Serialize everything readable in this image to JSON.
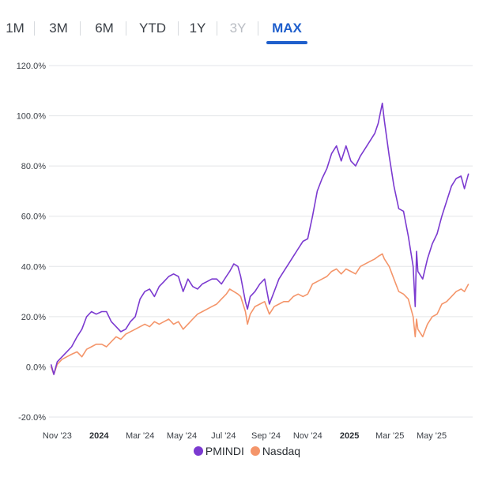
{
  "tabs": [
    {
      "label": "1M",
      "state": "normal"
    },
    {
      "label": "3M",
      "state": "normal"
    },
    {
      "label": "6M",
      "state": "normal"
    },
    {
      "label": "YTD",
      "state": "normal"
    },
    {
      "label": "1Y",
      "state": "normal"
    },
    {
      "label": "3Y",
      "state": "disabled"
    },
    {
      "label": "MAX",
      "state": "active"
    }
  ],
  "colors": {
    "pmindi": "#7b3ad0",
    "nasdaq": "#f4956a",
    "grid": "#e3e5e8",
    "active_tab": "#1f5fcc"
  },
  "legend": [
    {
      "label": "PMINDI",
      "color": "#7b3ad0"
    },
    {
      "label": "Nasdaq",
      "color": "#f4956a"
    }
  ],
  "chart_data": {
    "type": "line",
    "y_tick_labels": [
      "120.0%",
      "100.0%",
      "80.0%",
      "60.0%",
      "40.0%",
      "20.0%",
      "0.0%",
      "-20.0%"
    ],
    "y_ticks": [
      120,
      100,
      80,
      60,
      40,
      20,
      0,
      -20
    ],
    "ylim": [
      -20,
      120
    ],
    "x_tick_labels": [
      {
        "label": "Nov '23",
        "date": "2023-11-01",
        "bold": false
      },
      {
        "label": "2024",
        "date": "2024-01-01",
        "bold": true
      },
      {
        "label": "Mar '24",
        "date": "2024-03-01",
        "bold": false
      },
      {
        "label": "May '24",
        "date": "2024-05-01",
        "bold": false
      },
      {
        "label": "Jul '24",
        "date": "2024-07-01",
        "bold": false
      },
      {
        "label": "Sep '24",
        "date": "2024-09-01",
        "bold": false
      },
      {
        "label": "Nov '24",
        "date": "2024-11-01",
        "bold": false
      },
      {
        "label": "2025",
        "date": "2025-01-01",
        "bold": true
      },
      {
        "label": "Mar '25",
        "date": "2025-03-01",
        "bold": false
      },
      {
        "label": "May '25",
        "date": "2025-05-01",
        "bold": false
      }
    ],
    "xlim": [
      "2023-10-20",
      "2025-06-30"
    ],
    "grid": "horizontal",
    "legend_position": "bottom",
    "series": [
      {
        "name": "PMINDI",
        "points": [
          [
            "2023-10-23",
            1
          ],
          [
            "2023-10-27",
            -3
          ],
          [
            "2023-11-01",
            2
          ],
          [
            "2023-11-08",
            4
          ],
          [
            "2023-11-15",
            6
          ],
          [
            "2023-11-22",
            8
          ],
          [
            "2023-11-30",
            12
          ],
          [
            "2023-12-07",
            15
          ],
          [
            "2023-12-14",
            20
          ],
          [
            "2023-12-21",
            22
          ],
          [
            "2023-12-28",
            21
          ],
          [
            "2024-01-05",
            22
          ],
          [
            "2024-01-12",
            22
          ],
          [
            "2024-01-19",
            18
          ],
          [
            "2024-01-26",
            16
          ],
          [
            "2024-02-02",
            14
          ],
          [
            "2024-02-09",
            15
          ],
          [
            "2024-02-16",
            18
          ],
          [
            "2024-02-23",
            20
          ],
          [
            "2024-03-01",
            27
          ],
          [
            "2024-03-08",
            30
          ],
          [
            "2024-03-15",
            31
          ],
          [
            "2024-03-22",
            28
          ],
          [
            "2024-03-29",
            32
          ],
          [
            "2024-04-05",
            34
          ],
          [
            "2024-04-12",
            36
          ],
          [
            "2024-04-19",
            37
          ],
          [
            "2024-04-26",
            36
          ],
          [
            "2024-05-03",
            30
          ],
          [
            "2024-05-10",
            35
          ],
          [
            "2024-05-17",
            32
          ],
          [
            "2024-05-24",
            31
          ],
          [
            "2024-05-31",
            33
          ],
          [
            "2024-06-07",
            34
          ],
          [
            "2024-06-14",
            35
          ],
          [
            "2024-06-21",
            35
          ],
          [
            "2024-06-28",
            33
          ],
          [
            "2024-07-05",
            36
          ],
          [
            "2024-07-10",
            38
          ],
          [
            "2024-07-16",
            41
          ],
          [
            "2024-07-22",
            40
          ],
          [
            "2024-07-26",
            36
          ],
          [
            "2024-08-02",
            26
          ],
          [
            "2024-08-05",
            23
          ],
          [
            "2024-08-09",
            28
          ],
          [
            "2024-08-16",
            30
          ],
          [
            "2024-08-23",
            33
          ],
          [
            "2024-08-30",
            35
          ],
          [
            "2024-09-06",
            25
          ],
          [
            "2024-09-13",
            30
          ],
          [
            "2024-09-20",
            35
          ],
          [
            "2024-09-27",
            38
          ],
          [
            "2024-10-04",
            41
          ],
          [
            "2024-10-11",
            44
          ],
          [
            "2024-10-18",
            47
          ],
          [
            "2024-10-25",
            50
          ],
          [
            "2024-11-01",
            51
          ],
          [
            "2024-11-08",
            60
          ],
          [
            "2024-11-15",
            70
          ],
          [
            "2024-11-22",
            75
          ],
          [
            "2024-11-29",
            79
          ],
          [
            "2024-12-06",
            85
          ],
          [
            "2024-12-13",
            88
          ],
          [
            "2024-12-20",
            82
          ],
          [
            "2024-12-27",
            88
          ],
          [
            "2025-01-03",
            82
          ],
          [
            "2025-01-10",
            80
          ],
          [
            "2025-01-17",
            84
          ],
          [
            "2025-01-24",
            87
          ],
          [
            "2025-01-31",
            90
          ],
          [
            "2025-02-07",
            93
          ],
          [
            "2025-02-12",
            97
          ],
          [
            "2025-02-18",
            105
          ],
          [
            "2025-02-21",
            98
          ],
          [
            "2025-02-28",
            84
          ],
          [
            "2025-03-07",
            72
          ],
          [
            "2025-03-14",
            63
          ],
          [
            "2025-03-21",
            62
          ],
          [
            "2025-03-28",
            52
          ],
          [
            "2025-04-04",
            40
          ],
          [
            "2025-04-07",
            24
          ],
          [
            "2025-04-09",
            46
          ],
          [
            "2025-04-11",
            38
          ],
          [
            "2025-04-18",
            35
          ],
          [
            "2025-04-25",
            43
          ],
          [
            "2025-05-02",
            49
          ],
          [
            "2025-05-09",
            53
          ],
          [
            "2025-05-16",
            60
          ],
          [
            "2025-05-23",
            66
          ],
          [
            "2025-05-30",
            72
          ],
          [
            "2025-06-06",
            75
          ],
          [
            "2025-06-13",
            76
          ],
          [
            "2025-06-18",
            71
          ],
          [
            "2025-06-24",
            77
          ]
        ]
      },
      {
        "name": "Nasdaq",
        "points": [
          [
            "2023-10-23",
            0
          ],
          [
            "2023-10-27",
            -3
          ],
          [
            "2023-11-01",
            1
          ],
          [
            "2023-11-08",
            3
          ],
          [
            "2023-11-15",
            4
          ],
          [
            "2023-11-22",
            5
          ],
          [
            "2023-11-30",
            6
          ],
          [
            "2023-12-07",
            4
          ],
          [
            "2023-12-14",
            7
          ],
          [
            "2023-12-21",
            8
          ],
          [
            "2023-12-28",
            9
          ],
          [
            "2024-01-05",
            9
          ],
          [
            "2024-01-12",
            8
          ],
          [
            "2024-01-19",
            10
          ],
          [
            "2024-01-26",
            12
          ],
          [
            "2024-02-02",
            11
          ],
          [
            "2024-02-09",
            13
          ],
          [
            "2024-02-16",
            14
          ],
          [
            "2024-02-23",
            15
          ],
          [
            "2024-03-01",
            16
          ],
          [
            "2024-03-08",
            17
          ],
          [
            "2024-03-15",
            16
          ],
          [
            "2024-03-22",
            18
          ],
          [
            "2024-03-29",
            17
          ],
          [
            "2024-04-05",
            18
          ],
          [
            "2024-04-12",
            19
          ],
          [
            "2024-04-19",
            17
          ],
          [
            "2024-04-26",
            18
          ],
          [
            "2024-05-03",
            15
          ],
          [
            "2024-05-10",
            17
          ],
          [
            "2024-05-17",
            19
          ],
          [
            "2024-05-24",
            21
          ],
          [
            "2024-05-31",
            22
          ],
          [
            "2024-06-07",
            23
          ],
          [
            "2024-06-14",
            24
          ],
          [
            "2024-06-21",
            25
          ],
          [
            "2024-06-28",
            27
          ],
          [
            "2024-07-05",
            29
          ],
          [
            "2024-07-10",
            31
          ],
          [
            "2024-07-16",
            30
          ],
          [
            "2024-07-22",
            29
          ],
          [
            "2024-07-26",
            28
          ],
          [
            "2024-08-02",
            22
          ],
          [
            "2024-08-05",
            17
          ],
          [
            "2024-08-09",
            21
          ],
          [
            "2024-08-16",
            24
          ],
          [
            "2024-08-23",
            25
          ],
          [
            "2024-08-30",
            26
          ],
          [
            "2024-09-06",
            21
          ],
          [
            "2024-09-13",
            24
          ],
          [
            "2024-09-20",
            25
          ],
          [
            "2024-09-27",
            26
          ],
          [
            "2024-10-04",
            26
          ],
          [
            "2024-10-11",
            28
          ],
          [
            "2024-10-18",
            29
          ],
          [
            "2024-10-25",
            28
          ],
          [
            "2024-11-01",
            29
          ],
          [
            "2024-11-08",
            33
          ],
          [
            "2024-11-15",
            34
          ],
          [
            "2024-11-22",
            35
          ],
          [
            "2024-11-29",
            36
          ],
          [
            "2024-12-06",
            38
          ],
          [
            "2024-12-13",
            39
          ],
          [
            "2024-12-20",
            37
          ],
          [
            "2024-12-27",
            39
          ],
          [
            "2025-01-03",
            38
          ],
          [
            "2025-01-10",
            37
          ],
          [
            "2025-01-17",
            40
          ],
          [
            "2025-01-24",
            41
          ],
          [
            "2025-01-31",
            42
          ],
          [
            "2025-02-07",
            43
          ],
          [
            "2025-02-12",
            44
          ],
          [
            "2025-02-18",
            45
          ],
          [
            "2025-02-21",
            43
          ],
          [
            "2025-02-28",
            40
          ],
          [
            "2025-03-07",
            35
          ],
          [
            "2025-03-14",
            30
          ],
          [
            "2025-03-21",
            29
          ],
          [
            "2025-03-28",
            27
          ],
          [
            "2025-04-04",
            20
          ],
          [
            "2025-04-07",
            12
          ],
          [
            "2025-04-09",
            19
          ],
          [
            "2025-04-11",
            15
          ],
          [
            "2025-04-18",
            12
          ],
          [
            "2025-04-25",
            17
          ],
          [
            "2025-05-02",
            20
          ],
          [
            "2025-05-09",
            21
          ],
          [
            "2025-05-16",
            25
          ],
          [
            "2025-05-23",
            26
          ],
          [
            "2025-05-30",
            28
          ],
          [
            "2025-06-06",
            30
          ],
          [
            "2025-06-13",
            31
          ],
          [
            "2025-06-18",
            30
          ],
          [
            "2025-06-24",
            33
          ]
        ]
      }
    ]
  }
}
